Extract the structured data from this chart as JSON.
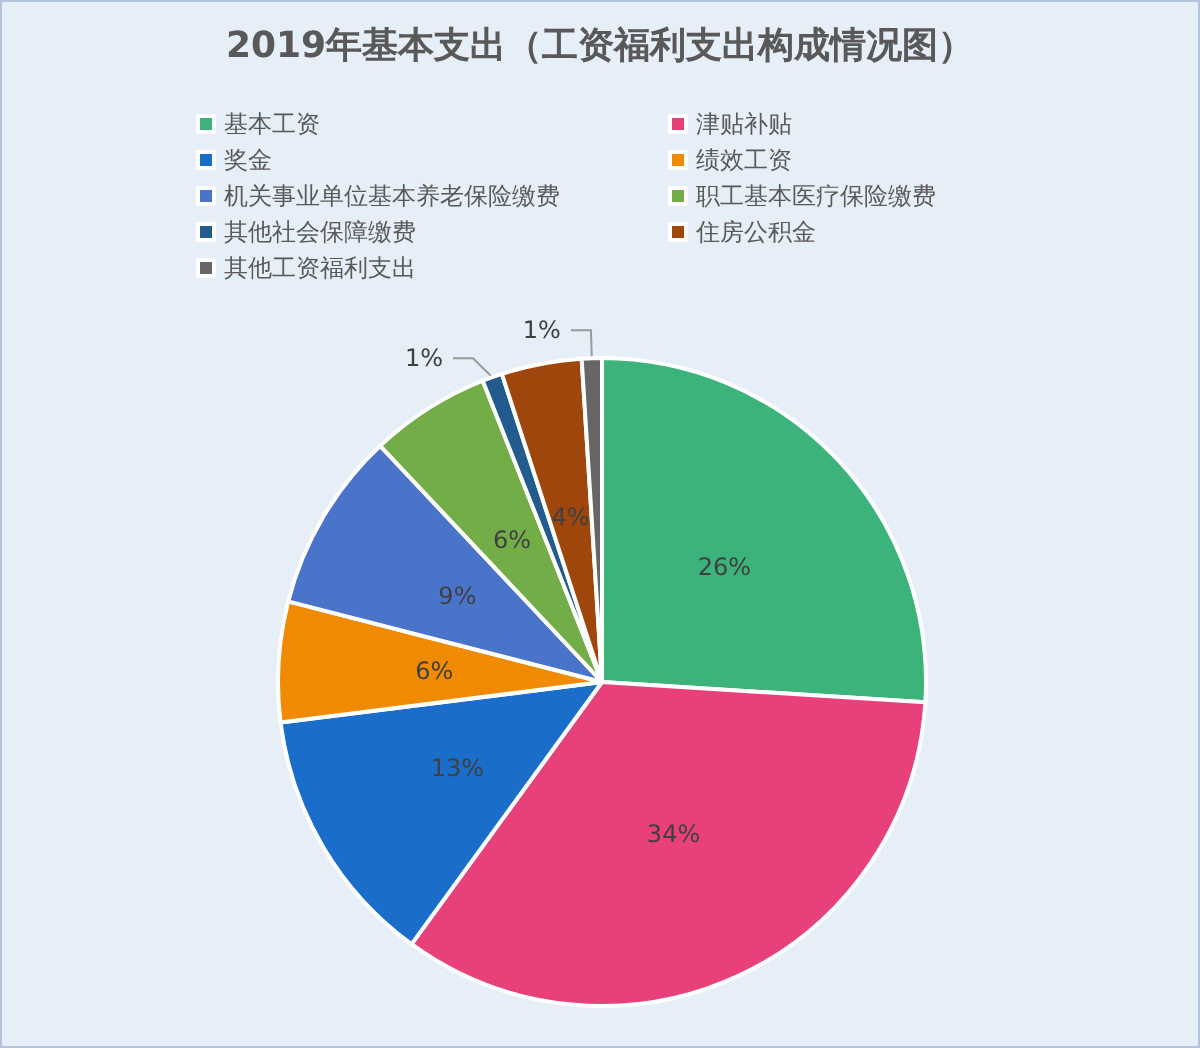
{
  "chart_data": {
    "type": "pie",
    "title": "2019年基本支出（工资福利支出构成情况图）",
    "categories": [
      "基本工资",
      "津贴补贴",
      "奖金",
      "绩效工资",
      "机关事业单位基本养老保险缴费",
      "职工基本医疗保险缴费",
      "其他社会保障缴费",
      "住房公积金",
      "其他工资福利支出"
    ],
    "values": [
      26,
      34,
      13,
      6,
      9,
      6,
      1,
      4,
      1
    ],
    "value_labels": [
      "26%",
      "34%",
      "13%",
      "6%",
      "9%",
      "6%",
      "1%",
      "4%",
      "1%"
    ],
    "colors": [
      "#3cb37b",
      "#e8407a",
      "#1a6dc8",
      "#f08a00",
      "#4a74c9",
      "#72ad48",
      "#245b8f",
      "#9e460c",
      "#666666"
    ],
    "legend": "top"
  }
}
